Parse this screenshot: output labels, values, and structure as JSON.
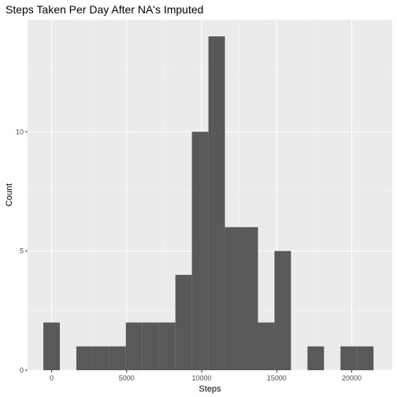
{
  "chart_data": {
    "type": "bar",
    "title": "Steps Taken Per Day After NA's Imputed",
    "xlabel": "Steps",
    "ylabel": "Count",
    "xlim": [
      -1600,
      22700
    ],
    "ylim": [
      0,
      14.7
    ],
    "x_ticks": [
      0,
      5000,
      10000,
      15000,
      20000
    ],
    "x_tick_labels": [
      "0",
      "5000",
      "10000",
      "15000",
      "20000"
    ],
    "y_ticks": [
      0,
      5,
      10
    ],
    "y_tick_labels": [
      "0",
      "5",
      "10"
    ],
    "bin_width": 1100,
    "bins": [
      {
        "start": -550,
        "end": 550,
        "count": 2
      },
      {
        "start": 550,
        "end": 1650,
        "count": 0
      },
      {
        "start": 1650,
        "end": 2750,
        "count": 1
      },
      {
        "start": 2750,
        "end": 3850,
        "count": 1
      },
      {
        "start": 3850,
        "end": 4950,
        "count": 1
      },
      {
        "start": 4950,
        "end": 6050,
        "count": 2
      },
      {
        "start": 6050,
        "end": 7150,
        "count": 2
      },
      {
        "start": 7150,
        "end": 8250,
        "count": 2
      },
      {
        "start": 8250,
        "end": 9350,
        "count": 4
      },
      {
        "start": 9350,
        "end": 10450,
        "count": 10
      },
      {
        "start": 10450,
        "end": 11550,
        "count": 14
      },
      {
        "start": 11550,
        "end": 12650,
        "count": 6
      },
      {
        "start": 12650,
        "end": 13750,
        "count": 6
      },
      {
        "start": 13750,
        "end": 14850,
        "count": 2
      },
      {
        "start": 14850,
        "end": 15950,
        "count": 5
      },
      {
        "start": 15950,
        "end": 17050,
        "count": 0
      },
      {
        "start": 17050,
        "end": 18150,
        "count": 1
      },
      {
        "start": 18150,
        "end": 19250,
        "count": 0
      },
      {
        "start": 19250,
        "end": 20350,
        "count": 1
      },
      {
        "start": 20350,
        "end": 21450,
        "count": 1
      }
    ],
    "grid": true,
    "colors": {
      "panel": "#ebebeb",
      "grid_major": "#ffffff",
      "bar_fill": "#595959",
      "tick_text": "#4d4d4d",
      "tick_mark": "#333333"
    }
  }
}
